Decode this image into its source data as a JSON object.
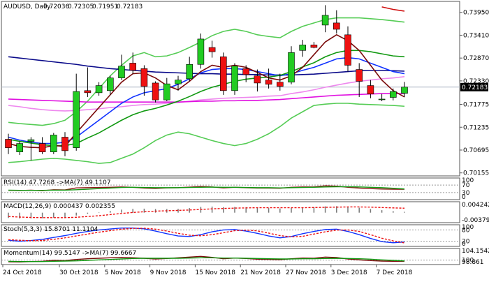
{
  "chart_data": {
    "type": "candlestick",
    "title": "AUDUSD, Daily",
    "ohlc_header": [
      "0.72036",
      "0.72305",
      "0.71951",
      "0.72183"
    ],
    "last_price": "0.72183",
    "colors": {
      "up": "#22cc22",
      "down": "#ee1111",
      "ma_red": "#d01010",
      "ma_navy": "#0a0a8a",
      "ma_magenta": "#e010e0",
      "ma_violet": "#ee88ee",
      "ma_green": "#119911",
      "ma_blue": "#1133ff",
      "ma_darkred": "#7a0a0a",
      "bb": "#55cc55",
      "price_line": "#aab4c4",
      "sub_line": "#8c1414"
    },
    "price_axis": {
      "ylim": [
        0.7015,
        0.7416
      ],
      "ticks": [
        0.7395,
        0.7341,
        0.7287,
        0.7233,
        0.71775,
        0.71235,
        0.70695,
        0.70155
      ],
      "tick_labels": [
        "0.73950",
        "0.73410",
        "0.72870",
        "0.72330",
        "0.71775",
        "0.71235",
        "0.70695",
        "0.70155"
      ]
    },
    "date_labels": [
      {
        "label": "24 Oct 2018",
        "index": 0
      },
      {
        "label": "30 Oct 2018",
        "index": 5
      },
      {
        "label": "5 Nov 2018",
        "index": 9
      },
      {
        "label": "9 Nov 2018",
        "index": 13
      },
      {
        "label": "15 Nov 2018",
        "index": 17
      },
      {
        "label": "21 Nov 2018",
        "index": 21
      },
      {
        "label": "27 Nov 2018",
        "index": 25
      },
      {
        "label": "3 Dec 2018",
        "index": 29
      },
      {
        "label": "7 Dec 2018",
        "index": 33
      }
    ],
    "candles": [
      {
        "o": 0.7095,
        "h": 0.7108,
        "l": 0.706,
        "c": 0.7075
      },
      {
        "o": 0.7065,
        "h": 0.709,
        "l": 0.7058,
        "c": 0.7085
      },
      {
        "o": 0.709,
        "h": 0.71,
        "l": 0.7045,
        "c": 0.7094
      },
      {
        "o": 0.7085,
        "h": 0.71,
        "l": 0.706,
        "c": 0.7065
      },
      {
        "o": 0.7065,
        "h": 0.711,
        "l": 0.706,
        "c": 0.7105
      },
      {
        "o": 0.71,
        "h": 0.7112,
        "l": 0.7055,
        "c": 0.7068
      },
      {
        "o": 0.7075,
        "h": 0.725,
        "l": 0.7068,
        "c": 0.7208
      },
      {
        "o": 0.721,
        "h": 0.7265,
        "l": 0.7195,
        "c": 0.7205
      },
      {
        "o": 0.7205,
        "h": 0.723,
        "l": 0.7198,
        "c": 0.7222
      },
      {
        "o": 0.721,
        "h": 0.7245,
        "l": 0.72,
        "c": 0.724
      },
      {
        "o": 0.724,
        "h": 0.7295,
        "l": 0.7235,
        "c": 0.7268
      },
      {
        "o": 0.7275,
        "h": 0.73,
        "l": 0.725,
        "c": 0.7258
      },
      {
        "o": 0.7262,
        "h": 0.727,
        "l": 0.7198,
        "c": 0.722
      },
      {
        "o": 0.7228,
        "h": 0.7232,
        "l": 0.7182,
        "c": 0.7188
      },
      {
        "o": 0.7188,
        "h": 0.724,
        "l": 0.7185,
        "c": 0.7226
      },
      {
        "o": 0.7226,
        "h": 0.7245,
        "l": 0.721,
        "c": 0.7235
      },
      {
        "o": 0.7238,
        "h": 0.729,
        "l": 0.7232,
        "c": 0.7272
      },
      {
        "o": 0.7272,
        "h": 0.7345,
        "l": 0.7262,
        "c": 0.7332
      },
      {
        "o": 0.7312,
        "h": 0.7328,
        "l": 0.7288,
        "c": 0.7302
      },
      {
        "o": 0.729,
        "h": 0.73,
        "l": 0.72,
        "c": 0.721
      },
      {
        "o": 0.721,
        "h": 0.7275,
        "l": 0.72,
        "c": 0.7268
      },
      {
        "o": 0.7262,
        "h": 0.727,
        "l": 0.723,
        "c": 0.7248
      },
      {
        "o": 0.7245,
        "h": 0.726,
        "l": 0.7208,
        "c": 0.7228
      },
      {
        "o": 0.7235,
        "h": 0.7262,
        "l": 0.7215,
        "c": 0.7225
      },
      {
        "o": 0.723,
        "h": 0.725,
        "l": 0.721,
        "c": 0.722
      },
      {
        "o": 0.723,
        "h": 0.7315,
        "l": 0.7225,
        "c": 0.73
      },
      {
        "o": 0.7305,
        "h": 0.733,
        "l": 0.729,
        "c": 0.7318
      },
      {
        "o": 0.7318,
        "h": 0.7325,
        "l": 0.731,
        "c": 0.7312
      },
      {
        "o": 0.7365,
        "h": 0.7412,
        "l": 0.7348,
        "c": 0.7388
      },
      {
        "o": 0.737,
        "h": 0.74,
        "l": 0.7345,
        "c": 0.7355
      },
      {
        "o": 0.7342,
        "h": 0.7362,
        "l": 0.7255,
        "c": 0.727
      },
      {
        "o": 0.726,
        "h": 0.7275,
        "l": 0.7195,
        "c": 0.7232
      },
      {
        "o": 0.7222,
        "h": 0.7235,
        "l": 0.7192,
        "c": 0.7202
      },
      {
        "o": 0.719,
        "h": 0.7202,
        "l": 0.7185,
        "c": 0.719
      },
      {
        "o": 0.7194,
        "h": 0.7215,
        "l": 0.7187,
        "c": 0.7208
      },
      {
        "o": 0.72036,
        "h": 0.72305,
        "l": 0.71951,
        "c": 0.72183
      }
    ],
    "overlays": [
      {
        "color_key": "ma_red",
        "values": [
          null,
          null,
          null,
          null,
          null,
          null,
          null,
          null,
          null,
          null,
          null,
          null,
          null,
          null,
          null,
          null,
          null,
          null,
          null,
          null,
          null,
          null,
          null,
          null,
          null,
          null,
          null,
          null,
          null,
          null,
          null,
          null,
          null,
          0.7408,
          0.7402,
          0.7398
        ]
      },
      {
        "color_key": "bb",
        "values": [
          0.7135,
          0.7132,
          0.713,
          0.7128,
          0.7132,
          0.714,
          0.716,
          0.7185,
          0.7215,
          0.7245,
          0.727,
          0.7292,
          0.73,
          0.729,
          0.7292,
          0.73,
          0.7312,
          0.7325,
          0.734,
          0.735,
          0.7355,
          0.735,
          0.7342,
          0.7338,
          0.7335,
          0.735,
          0.7362,
          0.737,
          0.7378,
          0.7382,
          0.7382,
          0.7382,
          0.738,
          0.7378,
          0.7375,
          0.7372
        ]
      },
      {
        "color_key": "bb",
        "values": [
          0.704,
          0.7042,
          0.7045,
          0.7048,
          0.705,
          0.7048,
          0.7045,
          0.7042,
          0.7038,
          0.704,
          0.705,
          0.706,
          0.7075,
          0.7092,
          0.7105,
          0.7112,
          0.7108,
          0.71,
          0.7092,
          0.7085,
          0.708,
          0.7085,
          0.7095,
          0.7108,
          0.7125,
          0.7145,
          0.716,
          0.7175,
          0.7178,
          0.718,
          0.718,
          0.7178,
          0.7177,
          0.7176,
          0.7175,
          0.7173
        ]
      },
      {
        "color_key": "ma_navy",
        "values": [
          0.729,
          0.7287,
          0.7284,
          0.7281,
          0.7278,
          0.7275,
          0.7272,
          0.7268,
          0.7265,
          0.7262,
          0.726,
          0.7258,
          0.7256,
          0.7254,
          0.7253,
          0.7252,
          0.7251,
          0.725,
          0.725,
          0.7249,
          0.7249,
          0.7248,
          0.7248,
          0.7247,
          0.7247,
          0.7247,
          0.7248,
          0.7249,
          0.7251,
          0.7253,
          0.7255,
          0.7257,
          0.7258,
          0.7258,
          0.7257,
          0.7256
        ]
      },
      {
        "color_key": "ma_violet",
        "values": [
          0.7175,
          0.7172,
          0.7168,
          0.7165,
          0.7163,
          0.7162,
          0.7163,
          0.7165,
          0.7167,
          0.717,
          0.7172,
          0.7175,
          0.7177,
          0.7178,
          0.718,
          0.7182,
          0.7185,
          0.7188,
          0.719,
          0.7192,
          0.7193,
          0.7194,
          0.7195,
          0.7197,
          0.7198,
          0.7203,
          0.7207,
          0.7212,
          0.7218,
          0.7223,
          0.7228,
          0.7232,
          0.7235,
          0.7238,
          0.724,
          0.7243
        ]
      },
      {
        "color_key": "ma_magenta",
        "values": [
          0.719,
          0.7189,
          0.7188,
          0.7187,
          0.7186,
          0.7185,
          0.7184,
          0.7183,
          0.7183,
          0.7183,
          0.7183,
          0.7183,
          0.7183,
          0.7183,
          0.7183,
          0.7183,
          0.7184,
          0.7185,
          0.7185,
          0.7186,
          0.7186,
          0.7187,
          0.7187,
          0.7188,
          0.7189,
          0.7191,
          0.7193,
          0.7195,
          0.7197,
          0.7199,
          0.72,
          0.7201,
          0.7202,
          0.7203,
          0.7203,
          0.7203
        ]
      },
      {
        "color_key": "ma_blue",
        "values": [
          0.71,
          0.7093,
          0.7088,
          0.7085,
          0.7085,
          0.7088,
          0.71,
          0.712,
          0.714,
          0.716,
          0.718,
          0.7195,
          0.7205,
          0.721,
          0.7215,
          0.7225,
          0.7238,
          0.7252,
          0.726,
          0.7262,
          0.7262,
          0.726,
          0.7255,
          0.725,
          0.7245,
          0.725,
          0.7258,
          0.7265,
          0.7275,
          0.7285,
          0.7288,
          0.7285,
          0.7275,
          0.7265,
          0.7255,
          0.725
        ]
      },
      {
        "color_key": "ma_green",
        "values": [
          0.7095,
          0.709,
          0.7086,
          0.7082,
          0.708,
          0.708,
          0.7085,
          0.7098,
          0.711,
          0.7125,
          0.714,
          0.7153,
          0.7162,
          0.7168,
          0.7176,
          0.7185,
          0.7196,
          0.7208,
          0.7218,
          0.7225,
          0.7232,
          0.7237,
          0.724,
          0.7242,
          0.7246,
          0.7255,
          0.7266,
          0.7276,
          0.729,
          0.73,
          0.7305,
          0.7305,
          0.7302,
          0.7297,
          0.7292,
          0.729
        ]
      },
      {
        "color_key": "ma_darkred",
        "values": [
          0.7085,
          0.7078,
          0.7076,
          0.7075,
          0.708,
          0.7078,
          0.711,
          0.714,
          0.717,
          0.72,
          0.723,
          0.725,
          0.7252,
          0.724,
          0.7222,
          0.7212,
          0.7232,
          0.7255,
          0.727,
          0.7265,
          0.727,
          0.7265,
          0.7253,
          0.724,
          0.7235,
          0.7245,
          0.7265,
          0.7295,
          0.7325,
          0.7342,
          0.7328,
          0.7305,
          0.727,
          0.7235,
          0.721,
          0.7195
        ]
      }
    ],
    "indicators": [
      {
        "id": "rsi",
        "label": "RSI(14) 47.7268   ->MA(7) 49.1107",
        "ylim": [
          0,
          100
        ],
        "ticks": [
          100,
          70,
          30,
          0
        ],
        "tick_labels": [
          "100",
          "70",
          "30",
          "0"
        ],
        "levels": [
          70,
          30
        ],
        "series": [
          {
            "color_key": "sub_line",
            "values": [
              42,
              41,
              43,
              40,
              45,
              44,
              55,
              56,
              57,
              58,
              60,
              58,
              54,
              52,
              55,
              56,
              59,
              62,
              60,
              55,
              58,
              56,
              54,
              54,
              53,
              58,
              60,
              60,
              66,
              64,
              58,
              54,
              51,
              49,
              48,
              47.7
            ]
          },
          {
            "color_key": "ma_green",
            "values": [
              43,
              42,
              42,
              42,
              43,
              43,
              45,
              48,
              51,
              54,
              57,
              58,
              57,
              56,
              56,
              56,
              57,
              58,
              59,
              58,
              58,
              57,
              56,
              56,
              55,
              56,
              57,
              58,
              60,
              61,
              61,
              60,
              58,
              56,
              53,
              49.1
            ]
          }
        ]
      },
      {
        "id": "macd",
        "label": "MACD(12,26,9) 0.000437 0.002355",
        "ylim": [
          -0.0045,
          0.005
        ],
        "ticks": [
          0.004242,
          -0.003795
        ],
        "tick_labels": [
          "0.004242",
          "-0.003795"
        ],
        "histogram": [
          -0.0028,
          -0.003,
          -0.003,
          -0.0029,
          -0.0026,
          -0.0025,
          -0.0015,
          -0.0006,
          0.0002,
          0.0009,
          0.0016,
          0.002,
          0.0021,
          0.0019,
          0.0019,
          0.002,
          0.0024,
          0.003,
          0.0032,
          0.0029,
          0.003,
          0.0029,
          0.0026,
          0.0024,
          0.0022,
          0.0025,
          0.0028,
          0.0029,
          0.0033,
          0.0034,
          0.0031,
          0.0026,
          0.0019,
          0.0013,
          0.0008,
          0.000437
        ],
        "series": [
          {
            "color_key": "down",
            "values": [
              -0.002,
              -0.0023,
              -0.0025,
              -0.0026,
              -0.0026,
              -0.0026,
              -0.0024,
              -0.002,
              -0.0016,
              -0.001,
              -0.0004,
              0.0001,
              0.0005,
              0.0008,
              0.001,
              0.0012,
              0.0014,
              0.0017,
              0.002,
              0.0022,
              0.0024,
              0.0025,
              0.0026,
              0.0026,
              0.0026,
              0.0026,
              0.0026,
              0.0027,
              0.0028,
              0.0029,
              0.003,
              0.003,
              0.0029,
              0.0027,
              0.0025,
              0.002355
            ]
          }
        ]
      },
      {
        "id": "stoch",
        "label": "Stoch(5,3,3) 15.8701 11.1104",
        "ylim": [
          0,
          100
        ],
        "ticks": [
          100,
          80,
          20,
          0
        ],
        "tick_labels": [
          "100",
          "80",
          "20",
          "0"
        ],
        "levels": [
          80,
          20
        ],
        "series": [
          {
            "color_key": "ma_blue",
            "values": [
              25,
              20,
              24,
              30,
              40,
              50,
              62,
              72,
              80,
              85,
              90,
              90,
              86,
              74,
              60,
              48,
              45,
              55,
              70,
              80,
              82,
              74,
              62,
              48,
              38,
              45,
              60,
              72,
              82,
              84,
              72,
              55,
              35,
              18,
              12,
              15.87
            ]
          },
          {
            "color_key": "down",
            "values": [
              28,
              25,
              23,
              24,
              30,
              38,
              48,
              58,
              68,
              76,
              84,
              88,
              89,
              84,
              74,
              62,
              52,
              49,
              55,
              65,
              76,
              79,
              75,
              63,
              50,
              43,
              46,
              58,
              70,
              79,
              80,
              72,
              55,
              36,
              22,
              11.11
            ]
          }
        ]
      },
      {
        "id": "momentum",
        "label": "Momentum(14) 99.5147   ->MA(7) 99.6667",
        "ylim": [
          98.7,
          104.4
        ],
        "ticks": [
          104.1542,
          100,
          98.861
        ],
        "tick_labels": [
          "104.1542",
          "100",
          "98.861"
        ],
        "levels": [
          100
        ],
        "series": [
          {
            "color_key": "ma_darkred",
            "values": [
              99.3,
              99.2,
              99.4,
              99.5,
              99.9,
              99.8,
              100.3,
              100.6,
              100.8,
              101.0,
              101.2,
              101.0,
              100.8,
              100.5,
              100.7,
              101.0,
              101.3,
              101.6,
              101.2,
              100.6,
              100.9,
              100.7,
              100.4,
              100.3,
              100.2,
              100.6,
              100.9,
              100.8,
              101.3,
              101.1,
              100.5,
              100.1,
              99.8,
              99.6,
              99.5,
              99.5147
            ]
          },
          {
            "color_key": "ma_green",
            "values": [
              99.5,
              99.4,
              99.4,
              99.4,
              99.5,
              99.6,
              99.7,
              99.9,
              100.1,
              100.3,
              100.5,
              100.7,
              100.8,
              100.8,
              100.8,
              100.8,
              100.9,
              101.0,
              101.0,
              100.9,
              100.9,
              100.8,
              100.7,
              100.6,
              100.5,
              100.5,
              100.6,
              100.6,
              100.7,
              100.8,
              100.7,
              100.6,
              100.4,
              100.1,
              99.9,
              99.6667
            ]
          }
        ]
      }
    ]
  }
}
